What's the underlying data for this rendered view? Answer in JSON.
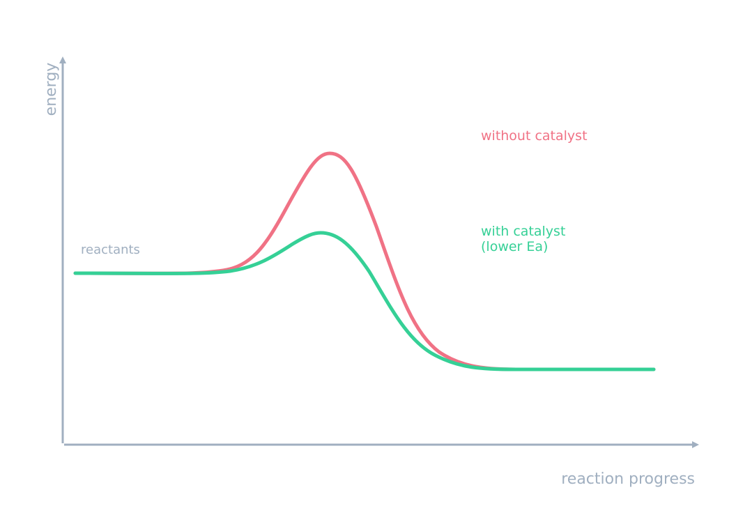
{
  "axes": {
    "x_label": "reaction progress",
    "y_label": "energy",
    "color": "#a0afc0"
  },
  "labels": {
    "reactants": "reactants",
    "without_catalyst": "without catalyst",
    "with_catalyst_line1": "with catalyst",
    "with_catalyst_line2": "(lower Ea)"
  },
  "series": [
    {
      "name": "without catalyst",
      "color": "#f07285"
    },
    {
      "name": "with catalyst (lower Ea)",
      "color": "#35d096"
    }
  ]
}
